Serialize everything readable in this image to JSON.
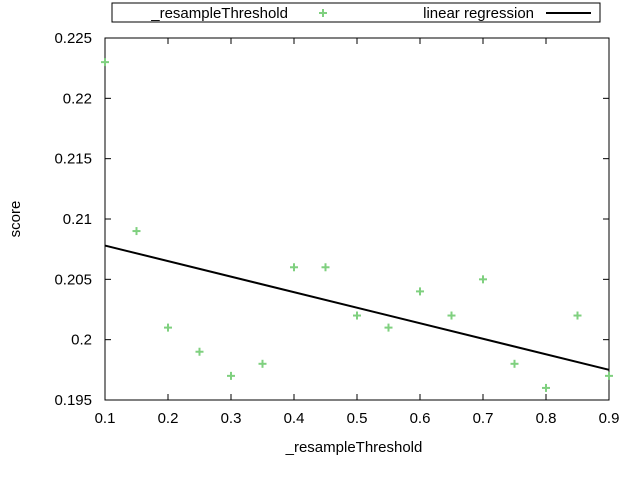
{
  "chart_data": {
    "type": "scatter",
    "xlabel": "_resampleThreshold",
    "ylabel": "score",
    "xlim": [
      0.1,
      0.9
    ],
    "ylim": [
      0.195,
      0.225
    ],
    "x_ticks": [
      "0.1",
      "0.2",
      "0.3",
      "0.4",
      "0.5",
      "0.6",
      "0.7",
      "0.8",
      "0.9"
    ],
    "y_ticks": [
      "0.195",
      "0.2",
      "0.205",
      "0.21",
      "0.215",
      "0.22",
      "0.225"
    ],
    "legend_position": "top",
    "series": [
      {
        "name": "_resampleThreshold",
        "type": "scatter",
        "marker": "plus",
        "color": "#7fd07f",
        "x": [
          0.1,
          0.15,
          0.2,
          0.25,
          0.3,
          0.35,
          0.4,
          0.45,
          0.5,
          0.55,
          0.6,
          0.65,
          0.7,
          0.75,
          0.8,
          0.85,
          0.9
        ],
        "y": [
          0.223,
          0.209,
          0.201,
          0.199,
          0.197,
          0.198,
          0.206,
          0.206,
          0.202,
          0.201,
          0.204,
          0.202,
          0.205,
          0.198,
          0.196,
          0.202,
          0.197
        ]
      },
      {
        "name": "linear regression",
        "type": "line",
        "color": "#000000",
        "x": [
          0.1,
          0.9
        ],
        "y": [
          0.2078,
          0.1975
        ]
      }
    ]
  }
}
